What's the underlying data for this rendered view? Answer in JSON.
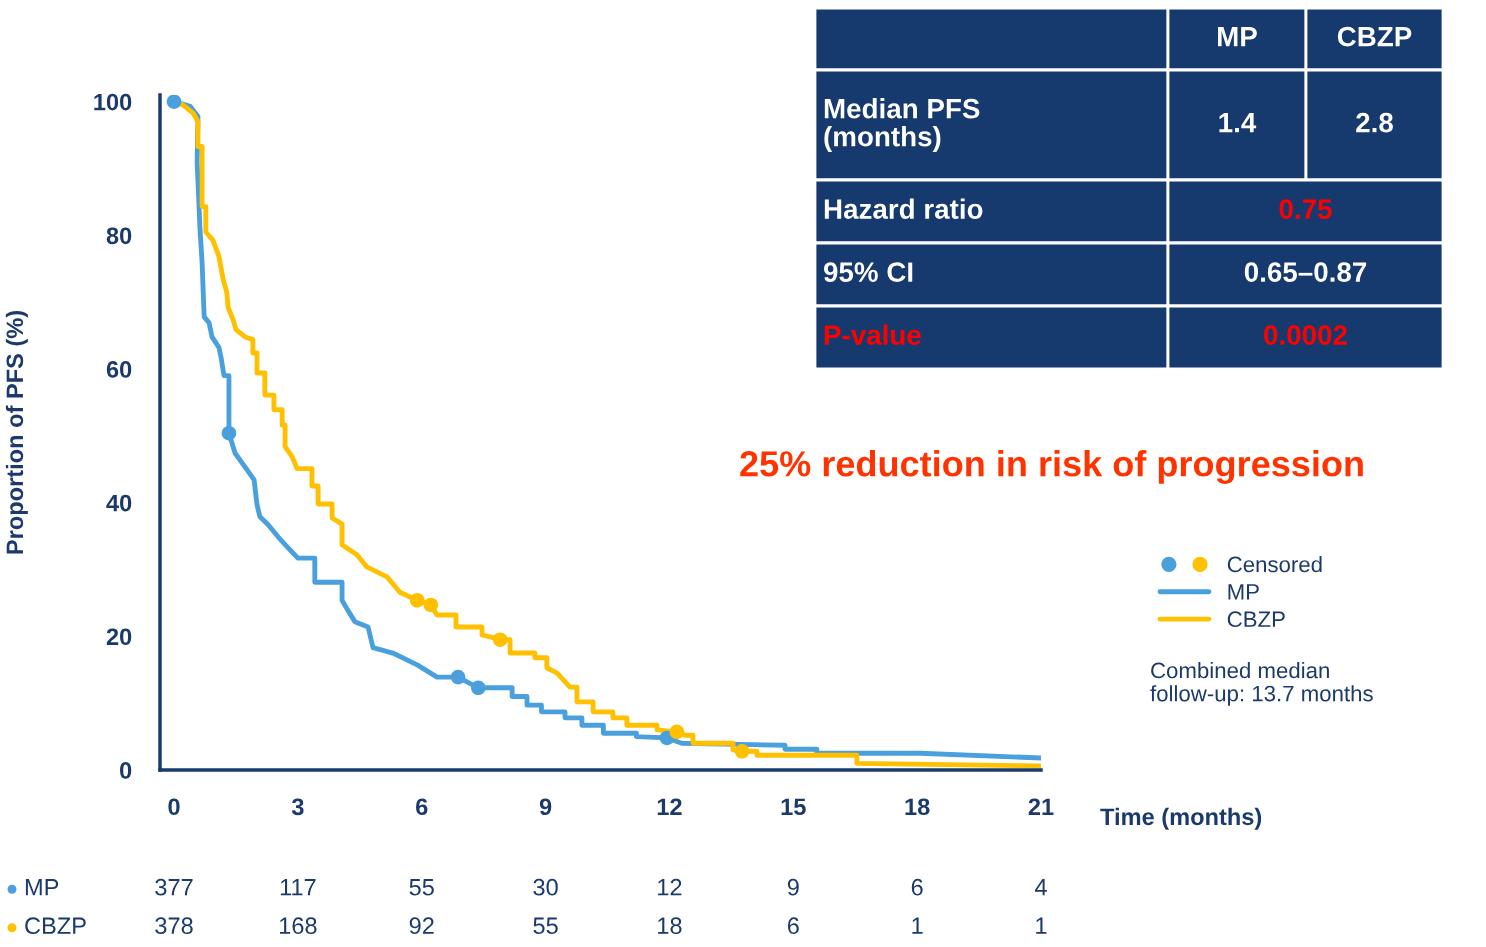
{
  "chart_data": [
    {
      "type": "line",
      "xlabel": "Time (months)",
      "ylabel": "Proportion of PFS (%)",
      "xlim": [
        -0.34,
        21
      ],
      "ylim": [
        0,
        101
      ],
      "xticks": [
        0,
        3,
        6,
        9,
        12,
        15,
        18,
        21
      ],
      "yticks": [
        0,
        20,
        40,
        60,
        80,
        100
      ],
      "grid": false,
      "legend": "right",
      "line_style": "solid",
      "annotations": [
        "25% reduction in risk of progression",
        "Combined median\nfollow-up: 13.7 months"
      ],
      "series": [
        {
          "name": "MP",
          "type": "line",
          "color": "#4aa0dc",
          "x": [
            0,
            0.39,
            0.58,
            0.56,
            0.63,
            0.68,
            0.73,
            0.85,
            0.92,
            1.09,
            1.14,
            1.21,
            1.33,
            1.33,
            1.48,
            1.77,
            1.94,
            2.01,
            2.08,
            2.28,
            2.52,
            2.74,
            3.0,
            3.41,
            3.41,
            4.07,
            4.07,
            4.2,
            4.38,
            4.7,
            4.82,
            5.3,
            5.9,
            6.37,
            6.88,
            7.37,
            8.19,
            8.19,
            8.55,
            8.55,
            8.9,
            8.9,
            9.47,
            9.47,
            9.88,
            9.88,
            10.4,
            10.4,
            11.2,
            11.2,
            11.94,
            12.3,
            14.8,
            14.8,
            15.57,
            15.57,
            18.07,
            21
          ],
          "values": [
            100,
            99.3,
            97.8,
            90.9,
            80.8,
            75.9,
            67.8,
            66.9,
            64.8,
            63.2,
            61.7,
            59,
            59,
            50.4,
            47.4,
            44.9,
            43.4,
            39.7,
            37.9,
            36.7,
            34.9,
            33.4,
            31.7,
            31.7,
            28.1,
            28.1,
            25.4,
            24,
            22.2,
            21.4,
            18.3,
            17.5,
            15.7,
            13.9,
            13.9,
            12.3,
            12.3,
            11,
            11,
            9.7,
            9.7,
            8.7,
            8.7,
            7.8,
            7.8,
            6.7,
            6.7,
            5.5,
            5.5,
            5.0,
            4.8,
            4.0,
            3.7,
            3.1,
            3.1,
            2.5,
            2.5,
            1.8
          ]
        },
        {
          "name": "CBZP",
          "type": "line",
          "color": "#ffc000",
          "x": [
            0,
            0.22,
            0.46,
            0.58,
            0.58,
            0.68,
            0.68,
            0.77,
            0.77,
            0.94,
            1.09,
            1.19,
            1.28,
            1.31,
            1.43,
            1.5,
            1.72,
            1.91,
            1.91,
            2.01,
            2.01,
            2.2,
            2.2,
            2.42,
            2.42,
            2.62,
            2.62,
            2.69,
            2.69,
            2.86,
            2.98,
            3.34,
            3.34,
            3.49,
            3.49,
            3.83,
            3.83,
            4.07,
            4.07,
            4.43,
            4.67,
            5.16,
            5.47,
            5.89,
            6.22,
            6.37,
            6.83,
            6.83,
            7.46,
            7.46,
            7.73,
            7.9,
            8.14,
            8.14,
            8.74,
            8.74,
            9.03,
            9.03,
            9.28,
            9.59,
            9.76,
            9.76,
            10.15,
            10.15,
            10.63,
            10.63,
            10.97,
            10.97,
            11.7,
            11.7,
            12.18,
            12.38,
            12.57,
            12.57,
            13.54,
            13.54,
            13.76,
            14.12,
            14.12,
            16.54,
            16.54,
            21
          ],
          "values": [
            100,
            99.5,
            98.3,
            97,
            93.3,
            93.3,
            84.3,
            84.3,
            80.5,
            79.3,
            76.8,
            73.4,
            71.4,
            69.2,
            67.4,
            65.9,
            64.8,
            64.4,
            62.4,
            62.4,
            59.4,
            59.4,
            56.1,
            56.1,
            53.9,
            53.9,
            51.6,
            51.6,
            48.4,
            46.9,
            45.1,
            45.1,
            42.5,
            42.5,
            39.8,
            39.8,
            37.7,
            36.8,
            33.7,
            32.2,
            30.4,
            28.9,
            26.6,
            25.4,
            24.7,
            23.2,
            23.2,
            21.4,
            21.4,
            20.2,
            19.8,
            19.5,
            19.5,
            17.5,
            17.5,
            16.8,
            16.8,
            15.3,
            14.5,
            12.4,
            12.4,
            10.2,
            10.2,
            8.7,
            8.7,
            7.8,
            7.8,
            6.7,
            6.7,
            6.0,
            5.7,
            5.2,
            5.2,
            4.0,
            4.0,
            3.0,
            2.8,
            2.8,
            2.2,
            2.2,
            1.0,
            0.6
          ]
        },
        {
          "name": "Censored",
          "type": "scatter",
          "colors": [
            "#4aa0dc",
            "#4aa0dc",
            "#4aa0dc",
            "#4aa0dc",
            "#4aa0dc",
            "#ffc000",
            "#ffc000",
            "#ffc000",
            "#ffc000",
            "#ffc000"
          ],
          "x": [
            0,
            1.33,
            6.88,
            7.37,
            11.94,
            5.89,
            6.22,
            7.9,
            12.18,
            13.76
          ],
          "values": [
            100,
            50.4,
            13.9,
            12.3,
            4.8,
            25.4,
            24.7,
            19.5,
            5.7,
            2.8
          ]
        }
      ]
    },
    {
      "type": "other",
      "categories": [
        null,
        "MP",
        "CBZP"
      ],
      "y_categories": [
        "Median PFS\n(months)",
        "Hazard ratio",
        "95% CI",
        "P-value"
      ],
      "cell_labels": [
        [
          "1.4",
          "2.8"
        ],
        [
          "0.75",
          null
        ],
        [
          "0.65–0.87",
          null
        ],
        [
          "0.0002",
          null
        ]
      ],
      "colors": [
        [
          "#ffffff",
          "#ffffff",
          "#ffffff"
        ],
        [
          "#ffffff",
          "#ff0000",
          null
        ],
        [
          "#ffffff",
          "#ffffff",
          null
        ],
        [
          "#ff0000",
          "#ff0000",
          null
        ]
      ]
    },
    {
      "type": "other",
      "y_categories": [
        "MP",
        "CBZP"
      ],
      "colors": [
        "#4aa0dc",
        "#ffc000"
      ],
      "cell_labels": [
        [
          "377",
          "117",
          "55",
          "30",
          "12",
          "9",
          "6",
          "4"
        ],
        [
          "378",
          "168",
          "92",
          "55",
          "18",
          "6",
          "1",
          "1"
        ]
      ]
    }
  ]
}
